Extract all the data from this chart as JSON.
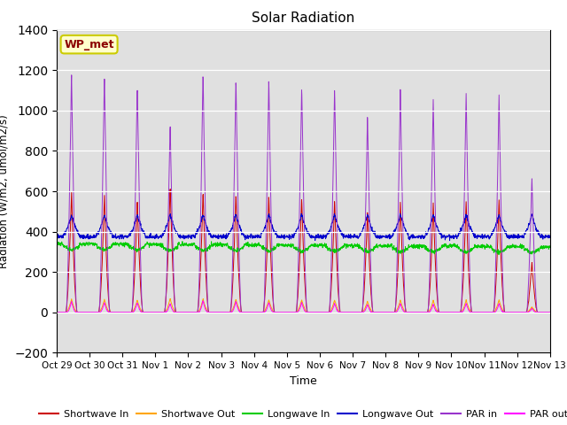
{
  "title": "Solar Radiation",
  "xlabel": "Time",
  "ylabel": "Radiation (W/m2, umol/m2/s)",
  "ylim": [
    -200,
    1400
  ],
  "yticks": [
    -200,
    0,
    200,
    400,
    600,
    800,
    1000,
    1200,
    1400
  ],
  "annotation": "WP_met",
  "background_color": "#e0e0e0",
  "grid_color": "white",
  "colors": {
    "shortwave_in": "#cc0000",
    "shortwave_out": "#ffa500",
    "longwave_in": "#00cc00",
    "longwave_out": "#0000cc",
    "par_in": "#9933cc",
    "par_out": "#ff00ff"
  },
  "x_tick_labels": [
    "Oct 29",
    "Oct 30",
    "Oct 31",
    "Nov 1",
    "Nov 2",
    "Nov 3",
    "Nov 4",
    "Nov 5",
    "Nov 6",
    "Nov 7",
    "Nov 8",
    "Nov 9",
    "Nov 10",
    "Nov 11",
    "Nov 12",
    "Nov 13"
  ],
  "legend_entries": [
    "Shortwave In",
    "Shortwave Out",
    "Longwave In",
    "Longwave Out",
    "PAR in",
    "PAR out"
  ]
}
